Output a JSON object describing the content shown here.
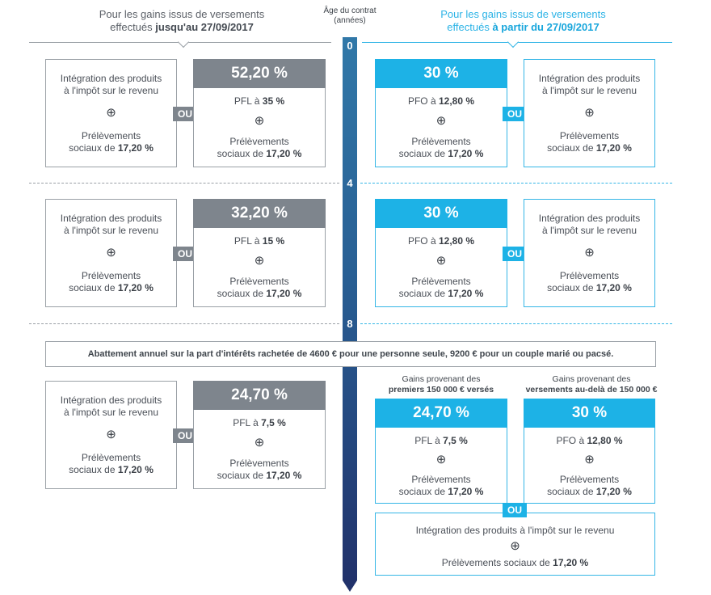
{
  "header": {
    "left_line1": "Pour les gains issus de versements",
    "left_line2_pre": "effectués ",
    "left_line2_bold": "jusqu'au 27/09/2017",
    "right_line1": "Pour les gains issus de versements",
    "right_line2_pre": "effectués ",
    "right_line2_bold": "à partir du 27/09/2017",
    "axis_title_l1": "Âge du contrat",
    "axis_title_l2": "(années)"
  },
  "ticks": [
    "0",
    "4",
    "8"
  ],
  "ou_label": "OU",
  "plus": "⊕",
  "common": {
    "integration_l1": "Intégration des produits",
    "integration_l2": "à l'impôt sur le revenu",
    "integration_single": "Intégration des produits à l'impôt sur le revenu",
    "prel_l1": "Prélèvements",
    "prel_l2_pre": "sociaux de ",
    "prel_rate": "17,20 %",
    "prel_single_pre": "Prélèvements sociaux de "
  },
  "row1": {
    "left_rate": "52,20 %",
    "left_tax_pre": "PFL à ",
    "left_tax_rate": "35 %",
    "right_rate": "30 %",
    "right_tax_pre": "PFO à ",
    "right_tax_rate": "12,80 %"
  },
  "row2": {
    "left_rate": "32,20 %",
    "left_tax_pre": "PFL à ",
    "left_tax_rate": "15 %",
    "right_rate": "30 %",
    "right_tax_pre": "PFO à ",
    "right_tax_rate": "12,80 %"
  },
  "banner": "Abattement annuel sur la part d'intérêts rachetée de 4600 € pour une personne seule, 9200 € pour un couple marié ou pacsé.",
  "row3": {
    "left_rate": "24,70 %",
    "left_tax_pre": "PFL à ",
    "left_tax_rate": "7,5 %",
    "sub1_l1": "Gains provenant des",
    "sub1_l2": "premiers 150 000 € versés",
    "sub2_l1": "Gains provenant des",
    "sub2_l2": "versements au-delà de 150 000 €",
    "mid_rate": "24,70 %",
    "mid_tax_pre": "PFL à ",
    "mid_tax_rate": "7,5 %",
    "far_rate": "30 %",
    "far_tax_pre": "PFO à ",
    "far_tax_rate": "12,80 %"
  },
  "colors": {
    "grey": "#7e858d",
    "cyan": "#1db2e6",
    "timeline_top": "#3178a8",
    "timeline_bottom": "#21326b"
  }
}
